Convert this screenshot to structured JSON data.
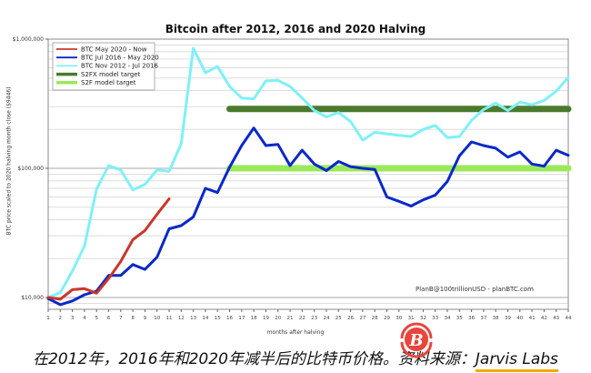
{
  "chart_data": {
    "type": "line",
    "title": "Bitcoin after 2012, 2016 and 2020 Halving",
    "xlabel": "months after halving",
    "ylabel": "BTC price scaled to 2020 halving month close ($9446)",
    "yscale": "log",
    "ylim": [
      7000,
      1000000
    ],
    "xlim": [
      1,
      44
    ],
    "y_ticks": [
      {
        "value": 1000000,
        "label": "$1,000,000"
      },
      {
        "value": 100000,
        "label": "$100,000"
      },
      {
        "value": 10000,
        "label": "$10,000"
      }
    ],
    "x_ticks": [
      1,
      2,
      3,
      4,
      5,
      6,
      7,
      8,
      9,
      10,
      11,
      12,
      13,
      14,
      15,
      16,
      17,
      18,
      19,
      20,
      21,
      22,
      23,
      24,
      25,
      26,
      27,
      28,
      29,
      30,
      31,
      32,
      33,
      34,
      35,
      36,
      37,
      38,
      39,
      40,
      41,
      42,
      43,
      44
    ],
    "grid": true,
    "legend_position": "upper left",
    "annotation": "PlanB@100trillionUSD - planBTC.com",
    "series": [
      {
        "name": "BTC May 2020 - Now",
        "color": "#c8382a",
        "x": [
          1,
          2,
          3,
          4,
          5,
          6,
          7,
          8,
          9,
          10,
          11
        ],
        "values": [
          10000,
          9700,
          11500,
          11700,
          10800,
          14000,
          19000,
          28000,
          33000,
          44000,
          58000
        ]
      },
      {
        "name": "BTC Jul 2016 - May 2020",
        "color": "#0a28c8",
        "x": [
          1,
          2,
          3,
          4,
          5,
          6,
          7,
          8,
          9,
          10,
          11,
          12,
          13,
          14,
          15,
          16,
          17,
          18,
          19,
          20,
          21,
          22,
          23,
          24,
          25,
          26,
          27,
          28,
          29,
          30,
          31,
          32,
          33,
          34,
          35,
          36,
          37,
          38,
          39,
          40,
          41,
          42,
          43,
          44
        ],
        "values": [
          9800,
          8800,
          9400,
          10500,
          11200,
          14800,
          14800,
          18000,
          16500,
          20500,
          34000,
          36000,
          42000,
          70000,
          65000,
          102000,
          150000,
          205000,
          150000,
          153000,
          105000,
          138000,
          108000,
          96000,
          113000,
          103000,
          100000,
          98000,
          60000,
          55500,
          51000,
          57000,
          62000,
          79000,
          125000,
          160000,
          150000,
          143000,
          122000,
          134000,
          108000,
          104000,
          138000,
          126000
        ]
      },
      {
        "name": "BTC Nov 2012 - Jul 2016",
        "color": "#7ff0f8",
        "x": [
          1,
          2,
          3,
          4,
          5,
          6,
          7,
          8,
          9,
          10,
          11,
          12,
          13,
          14,
          15,
          16,
          17,
          18,
          19,
          20,
          21,
          22,
          23,
          24,
          25,
          26,
          27,
          28,
          29,
          30,
          31,
          32,
          33,
          34,
          35,
          36,
          37,
          38,
          39,
          40,
          41,
          42,
          43,
          44
        ],
        "values": [
          10000,
          10900,
          16000,
          25000,
          69000,
          105000,
          97000,
          68000,
          75000,
          97000,
          95000,
          155000,
          850000,
          550000,
          615000,
          430000,
          350000,
          345000,
          475000,
          480000,
          430000,
          350000,
          280000,
          250000,
          270000,
          230000,
          165000,
          190000,
          185000,
          180000,
          176000,
          200000,
          215000,
          173000,
          176000,
          235000,
          285000,
          320000,
          280000,
          325000,
          310000,
          335000,
          395000,
          505000
        ]
      },
      {
        "name": "S2FX model target",
        "color": "#4a7a2c",
        "x": [
          16,
          44
        ],
        "values": [
          288000,
          288000
        ]
      },
      {
        "name": "S2F model target",
        "color": "#9be85a",
        "x": [
          16,
          44
        ],
        "values": [
          100000,
          100000
        ]
      }
    ]
  },
  "caption": {
    "text": "在2012年，2016年和2020年减半后的比特币价格。资料来源：",
    "source": "Jarvis Labs"
  },
  "watermark": {
    "icon": "bitcoin-logo-icon",
    "glyph": "B",
    "color": "#e8453c"
  }
}
